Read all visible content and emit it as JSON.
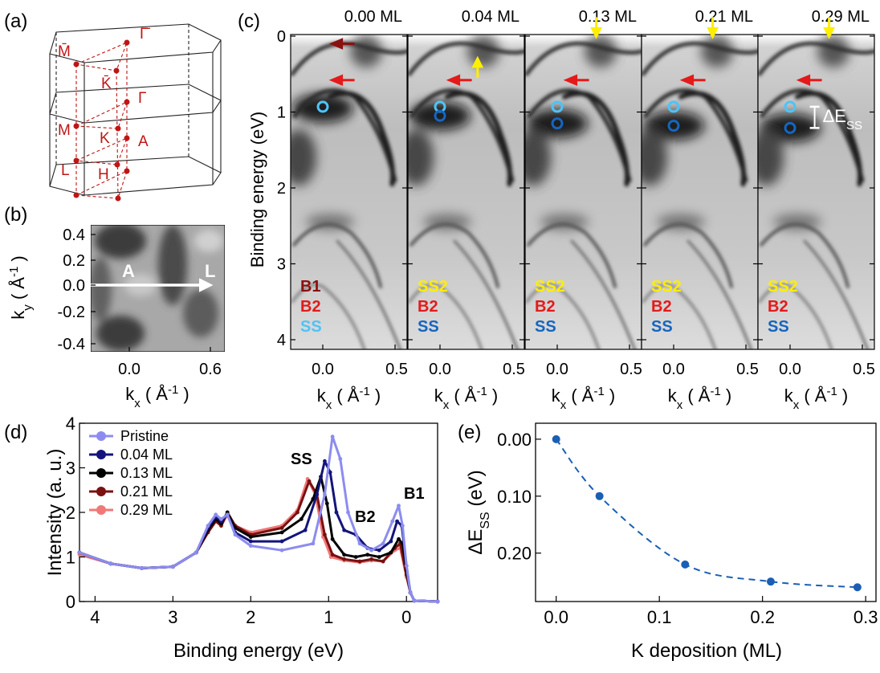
{
  "panel_labels": {
    "a": "(a)",
    "b": "(b)",
    "c": "(c)",
    "d": "(d)",
    "e": "(e)"
  },
  "bz": {
    "points": [
      "M̄",
      "Γ̄",
      "K̄",
      "Γ",
      "M",
      "K",
      "A",
      "L",
      "H"
    ]
  },
  "panel_b": {
    "path_start": "A",
    "path_end": "L",
    "x_ticks": [
      "0.0",
      "0.6"
    ],
    "y_ticks": [
      "0.4",
      "0.2",
      "0.0",
      "-0.2",
      "-0.4"
    ],
    "xlabel": "kx ( Å-1 )",
    "ylabel": "ky ( Å-1 )"
  },
  "panel_c": {
    "ylabel": "Binding energy (eV)",
    "y_ticks": [
      "0",
      "1",
      "2",
      "3",
      "4"
    ],
    "x_ticks": [
      "0.0",
      "0.5"
    ],
    "xlabel": "kx ( Å-1 )",
    "delta_label": "ΔEss",
    "colors": {
      "B1": "#8b1010",
      "B2": "#e41a1a",
      "SS2": "#ffee00",
      "SS_pristine": "#4fc3f7",
      "SS": "#1565c0",
      "arrow_yellow": "#ffee00",
      "arrow_red": "#e41a1a"
    },
    "subpanels": [
      {
        "coverage": "0.00 ML",
        "labels": [
          "B1",
          "B2",
          "SS"
        ]
      },
      {
        "coverage": "0.04 ML",
        "labels": [
          "SS2",
          "B2",
          "SS"
        ]
      },
      {
        "coverage": "0.13 ML",
        "labels": [
          "SS2",
          "B2",
          "SS"
        ]
      },
      {
        "coverage": "0.21 ML",
        "labels": [
          "SS2",
          "B2",
          "SS"
        ]
      },
      {
        "coverage": "0.29 ML",
        "labels": [
          "SS2",
          "B2",
          "SS"
        ]
      }
    ]
  },
  "panel_d": {
    "chart_data": {
      "type": "line",
      "xlabel": "Binding energy (eV)",
      "ylabel": "Intensity (a. u.)",
      "xlim": [
        4.2,
        -0.4
      ],
      "ylim": [
        0,
        4
      ],
      "x_ticks": [
        "4",
        "3",
        "2",
        "1",
        "0"
      ],
      "y_ticks": [
        "0",
        "1",
        "2",
        "3",
        "4"
      ],
      "annotations": [
        "SS",
        "B2",
        "B1"
      ],
      "series": [
        {
          "name": "Pristine",
          "color": "#8c8cf0",
          "x": [
            4.2,
            3.8,
            3.4,
            3.0,
            2.7,
            2.55,
            2.45,
            2.38,
            2.3,
            2.2,
            2.0,
            1.6,
            1.2,
            1.05,
            0.95,
            0.85,
            0.75,
            0.6,
            0.45,
            0.3,
            0.18,
            0.1,
            0.05,
            0.0,
            -0.05,
            -0.1,
            -0.4
          ],
          "y": [
            1.1,
            0.85,
            0.75,
            0.78,
            1.1,
            1.7,
            1.95,
            1.85,
            1.95,
            1.5,
            1.25,
            1.15,
            1.3,
            2.4,
            3.7,
            3.2,
            2.0,
            1.3,
            1.15,
            1.3,
            1.8,
            2.15,
            1.7,
            0.8,
            0.2,
            0.02,
            0.0
          ]
        },
        {
          "name": "0.04 ML",
          "color": "#14147a",
          "x": [
            4.2,
            3.8,
            3.4,
            3.0,
            2.7,
            2.55,
            2.45,
            2.38,
            2.3,
            2.2,
            2.0,
            1.6,
            1.3,
            1.15,
            1.05,
            0.98,
            0.9,
            0.8,
            0.65,
            0.5,
            0.35,
            0.2,
            0.12,
            0.06,
            0.0,
            -0.05,
            -0.1,
            -0.4
          ],
          "y": [
            1.1,
            0.85,
            0.75,
            0.78,
            1.1,
            1.65,
            1.9,
            1.8,
            1.95,
            1.55,
            1.35,
            1.35,
            1.6,
            2.4,
            3.15,
            2.9,
            2.0,
            1.6,
            1.5,
            1.2,
            1.15,
            1.35,
            1.8,
            1.7,
            0.8,
            0.2,
            0.02,
            0.0
          ]
        },
        {
          "name": "0.13 ML",
          "color": "#000000",
          "x": [
            4.2,
            3.8,
            3.4,
            3.0,
            2.7,
            2.55,
            2.45,
            2.38,
            2.3,
            2.2,
            2.0,
            1.6,
            1.35,
            1.2,
            1.1,
            1.02,
            0.95,
            0.8,
            0.65,
            0.5,
            0.35,
            0.2,
            0.1,
            0.05,
            0.0,
            -0.05,
            -0.1,
            -0.4
          ],
          "y": [
            1.1,
            0.85,
            0.75,
            0.78,
            1.1,
            1.6,
            1.85,
            1.75,
            2.0,
            1.65,
            1.45,
            1.55,
            1.85,
            2.3,
            2.8,
            2.2,
            1.4,
            1.05,
            1.0,
            1.05,
            1.0,
            1.1,
            1.4,
            1.3,
            0.7,
            0.2,
            0.02,
            0.0
          ]
        },
        {
          "name": "0.21 ML",
          "color": "#7a1010",
          "x": [
            4.2,
            3.8,
            3.4,
            3.0,
            2.7,
            2.55,
            2.45,
            2.38,
            2.3,
            2.2,
            2.0,
            1.6,
            1.4,
            1.25,
            1.15,
            1.05,
            0.95,
            0.8,
            0.6,
            0.45,
            0.3,
            0.15,
            0.08,
            0.0,
            -0.05,
            -0.1,
            -0.4
          ],
          "y": [
            1.1,
            0.85,
            0.75,
            0.78,
            1.1,
            1.55,
            1.8,
            1.7,
            2.0,
            1.7,
            1.5,
            1.65,
            2.0,
            2.7,
            2.4,
            1.5,
            1.05,
            0.95,
            0.9,
            0.95,
            0.9,
            1.2,
            1.3,
            0.6,
            0.2,
            0.02,
            0.0
          ]
        },
        {
          "name": "0.29 ML",
          "color": "#f07878",
          "x": [
            4.2,
            3.8,
            3.4,
            3.0,
            2.7,
            2.55,
            2.45,
            2.38,
            2.3,
            2.2,
            2.0,
            1.6,
            1.4,
            1.27,
            1.17,
            1.07,
            0.97,
            0.8,
            0.6,
            0.45,
            0.3,
            0.15,
            0.08,
            0.0,
            -0.05,
            -0.1,
            -0.4
          ],
          "y": [
            1.05,
            0.85,
            0.75,
            0.78,
            1.1,
            1.55,
            1.8,
            1.7,
            1.95,
            1.7,
            1.55,
            1.7,
            2.05,
            2.75,
            2.4,
            1.45,
            1.0,
            0.92,
            0.88,
            0.92,
            0.9,
            1.15,
            1.2,
            0.55,
            0.2,
            0.02,
            0.0
          ]
        }
      ]
    }
  },
  "panel_e": {
    "chart_data": {
      "type": "line",
      "xlabel": "K deposition (ML)",
      "ylabel": "ΔEss (eV)",
      "xlim": [
        -0.02,
        0.31
      ],
      "ylim": [
        0.285,
        -0.028
      ],
      "x_ticks": [
        "0.0",
        "0.1",
        "0.2",
        "0.3"
      ],
      "y_ticks": [
        "0.00",
        "0.10",
        "0.20"
      ],
      "color": "#1a5fb4",
      "x": [
        0.0,
        0.042,
        0.125,
        0.208,
        0.292
      ],
      "y": [
        0.0,
        0.1,
        0.22,
        0.25,
        0.26
      ]
    }
  }
}
